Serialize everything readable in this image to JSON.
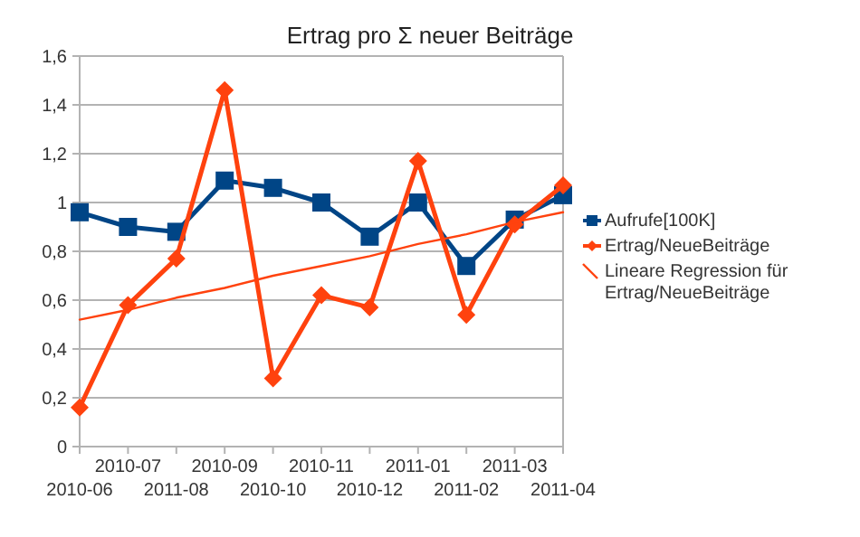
{
  "chart_data": {
    "type": "line",
    "title": "Ertrag pro Σ neuer Beiträge",
    "categories": [
      "2010-06",
      "2010-07",
      "2011-08",
      "2010-09",
      "2010-10",
      "2010-11",
      "2010-12",
      "2011-01",
      "2011-02",
      "2011-03",
      "2011-04"
    ],
    "series": [
      {
        "name": "Aufrufe[100K]",
        "color": "#004586",
        "marker": "square",
        "values": [
          0.96,
          0.9,
          0.88,
          1.09,
          1.06,
          1.0,
          0.86,
          1.0,
          0.74,
          0.93,
          1.03
        ]
      },
      {
        "name": "Ertrag/NeueBeiträge",
        "color": "#ff420e",
        "marker": "diamond",
        "values": [
          0.16,
          0.58,
          0.77,
          1.46,
          0.28,
          0.62,
          0.57,
          1.17,
          0.54,
          0.91,
          1.07
        ]
      },
      {
        "name": "Lineare Regression für Ertrag/NeueBeiträge",
        "color": "#ff420e",
        "marker": "none",
        "type": "line",
        "values": [
          0.52,
          0.56,
          0.61,
          0.65,
          0.7,
          0.74,
          0.78,
          0.83,
          0.87,
          0.92,
          0.96
        ]
      }
    ],
    "ylim": [
      0,
      1.6
    ],
    "yticks": [
      0,
      {
        "value": 0.2,
        "label": "0,2"
      },
      {
        "value": 0.4,
        "label": "0,4"
      },
      {
        "value": 0.6,
        "label": "0,6"
      },
      {
        "value": 0.8,
        "label": "0,8"
      },
      1,
      {
        "value": 1.2,
        "label": "1,2"
      },
      {
        "value": 1.4,
        "label": "1,4"
      },
      {
        "value": 1.6,
        "label": "1,6"
      }
    ],
    "grid": "y",
    "legend": "right",
    "line_style": "solid"
  }
}
